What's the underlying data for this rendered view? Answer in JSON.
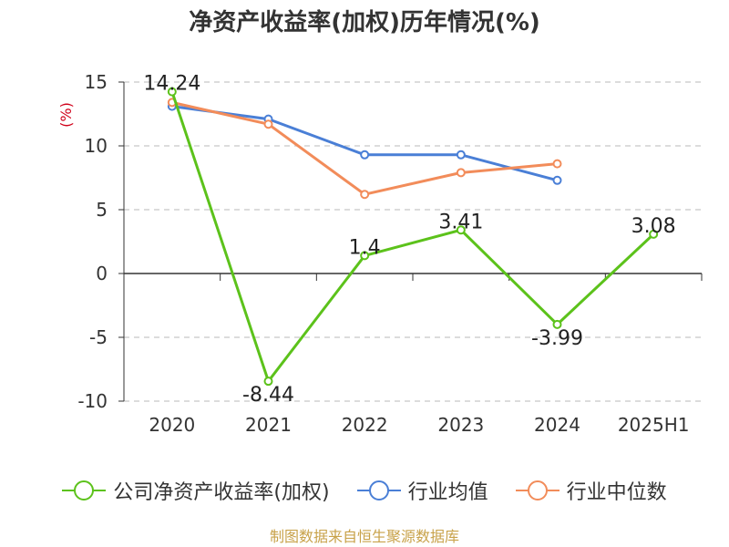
{
  "chart_data": {
    "type": "line",
    "title": "净资产收益率(加权)历年情况(%)",
    "ylabel": "(%)",
    "xlabel": "",
    "categories": [
      "2020",
      "2021",
      "2022",
      "2023",
      "2024",
      "2025H1"
    ],
    "ylim": [
      -10,
      15
    ],
    "yticks": [
      15,
      10,
      5,
      0,
      -5,
      -10
    ],
    "grid": true,
    "legend_position": "bottom",
    "series": [
      {
        "name": "公司净资产收益率(加权)",
        "values": [
          14.24,
          -8.44,
          1.4,
          3.41,
          -3.99,
          3.08
        ],
        "labels": [
          "14.24",
          "-8.44",
          "1.4",
          "3.41",
          "-3.99",
          "3.08"
        ],
        "color": "#5cc21b"
      },
      {
        "name": "行业均值",
        "values": [
          13.1,
          12.1,
          9.3,
          9.3,
          7.3,
          null
        ],
        "color": "#4a7fd6"
      },
      {
        "name": "行业中位数",
        "values": [
          13.4,
          11.7,
          6.2,
          7.9,
          8.6,
          null
        ],
        "color": "#f28c5a"
      }
    ]
  },
  "footer": {
    "source": "制图数据来自恒生聚源数据库"
  }
}
